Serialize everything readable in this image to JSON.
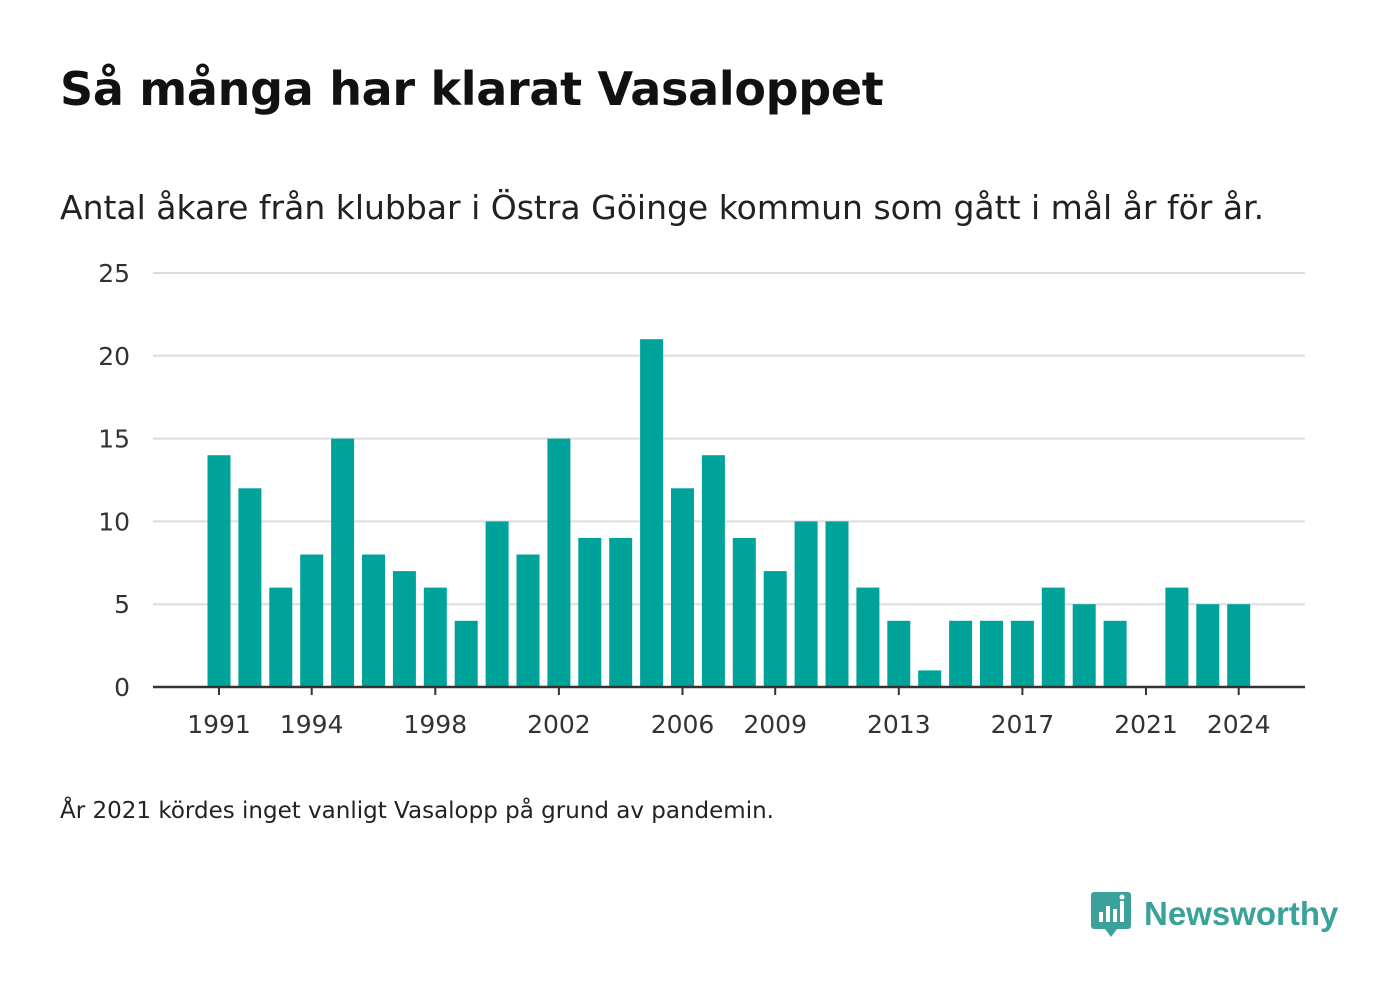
{
  "title": "Så många har klarat Vasaloppet",
  "subtitle": "Antal åkare från klubbar i Östra Göinge kommun som gått i mål år för år.",
  "note": "År 2021 kördes inget vanligt Vasalopp på grund av pandemin.",
  "brand": {
    "name": "Newsworthy",
    "icon": "newsworthy-logo-icon"
  },
  "colors": {
    "bar": "#00a39a",
    "grid": "#dddddd",
    "axis": "#333333",
    "brand": "#3aa29b"
  },
  "chart_data": {
    "type": "bar",
    "title": "Så många har klarat Vasaloppet",
    "subtitle": "Antal åkare från klubbar i Östra Göinge kommun som gått i mål år för år.",
    "xlabel": "",
    "ylabel": "",
    "categories": [
      1991,
      1992,
      1993,
      1994,
      1995,
      1996,
      1997,
      1998,
      1999,
      2000,
      2001,
      2002,
      2003,
      2004,
      2005,
      2006,
      2007,
      2008,
      2009,
      2010,
      2011,
      2012,
      2013,
      2014,
      2015,
      2016,
      2017,
      2018,
      2019,
      2020,
      2021,
      2022,
      2023,
      2024
    ],
    "values": [
      14,
      12,
      6,
      8,
      15,
      8,
      7,
      6,
      4,
      10,
      8,
      15,
      9,
      9,
      21,
      12,
      14,
      9,
      7,
      10,
      10,
      6,
      4,
      1,
      4,
      4,
      4,
      6,
      5,
      4,
      null,
      6,
      5,
      5
    ],
    "ylim": [
      0,
      25
    ],
    "yticks": [
      0,
      5,
      10,
      15,
      20,
      25
    ],
    "xticks": [
      1991,
      1994,
      1998,
      2002,
      2006,
      2009,
      2013,
      2017,
      2021,
      2024
    ],
    "grid": true,
    "legend": "none"
  }
}
